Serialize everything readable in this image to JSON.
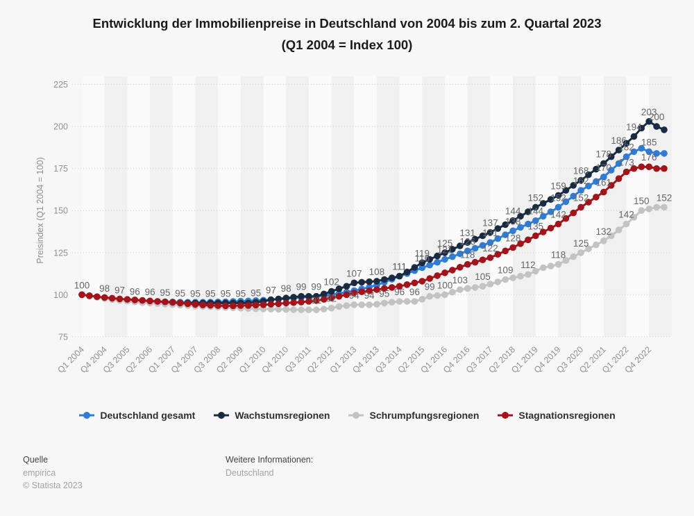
{
  "title": {
    "line1": "Entwicklung der Immobilienpreise in Deutschland von 2004 bis zum 2. Quartal 2023",
    "line2": "(Q1 2004 = Index 100)"
  },
  "chart_data": {
    "type": "line",
    "x_start": "Q1 2004",
    "x_end": "Q2 2023",
    "n_points": 78,
    "x_tick_labels": [
      "Q1 2004",
      "Q4 2004",
      "Q3 2005",
      "Q2 2006",
      "Q1 2007",
      "Q4 2007",
      "Q3 2008",
      "Q2 2009",
      "Q1 2010",
      "Q4 2010",
      "Q3 2011",
      "Q2 2012",
      "Q1 2013",
      "Q4 2013",
      "Q3 2014",
      "Q2 2015",
      "Q1 2016",
      "Q4 2016",
      "Q3 2017",
      "Q2 2018",
      "Q1 2019",
      "Q4 2019",
      "Q3 2020",
      "Q2 2021",
      "Q1 2022",
      "Q4 2022"
    ],
    "x_tick_step": 3,
    "ylabel": "Preisindex (Q1 2004 = 100)",
    "ylim": [
      75,
      225
    ],
    "yticks": [
      75,
      100,
      125,
      150,
      175,
      200,
      225
    ],
    "grid": "dotted-horizontal",
    "background_bands": "alternating-vertical",
    "legend_position": "bottom",
    "colors": {
      "band_dark": "#f0f0f1",
      "band_light": "#fafafa",
      "gridline": "#cfcfcf",
      "tick_text": "#909194",
      "data_label": "#646669",
      "page_bg": "#f7f7f7"
    },
    "series": [
      {
        "name": "Deutschland gesamt",
        "color": "#2f7cd6",
        "values": [
          100,
          99.3,
          98.7,
          98.2,
          97.7,
          97.3,
          97,
          96.7,
          96.4,
          96.2,
          96,
          95.8,
          95.7,
          95.6,
          95.5,
          95.5,
          95.5,
          95.6,
          95.7,
          95.8,
          96,
          96.1,
          96.3,
          96.5,
          96.7,
          97,
          97.3,
          97.6,
          98,
          98.3,
          98.7,
          99,
          99.5,
          100,
          100.7,
          101.5,
          102.4,
          103.4,
          104.5,
          105.7,
          107.4,
          109.2,
          111,
          112.6,
          114.3,
          116,
          117.6,
          119.3,
          121,
          122.6,
          124.3,
          126,
          127.6,
          129.3,
          131,
          133.3,
          135.6,
          138,
          140,
          142,
          144,
          146.6,
          149.3,
          152,
          155.3,
          158.6,
          162,
          164.6,
          167.3,
          170,
          174,
          178,
          182,
          185,
          187,
          185,
          184,
          184
        ],
        "point_labels": [
          [
            42,
            "111"
          ],
          [
            45,
            "116"
          ],
          [
            48,
            "121"
          ],
          [
            51,
            "126"
          ],
          [
            54,
            "131"
          ],
          [
            57,
            "138"
          ],
          [
            60,
            "144"
          ],
          [
            63,
            "152"
          ],
          [
            66,
            "162"
          ],
          [
            69,
            "170"
          ],
          [
            72,
            "182"
          ],
          [
            75,
            "185"
          ]
        ]
      },
      {
        "name": "Wachstumsregionen",
        "color": "#182b40",
        "values": [
          100,
          99.3,
          98.6,
          98,
          97.5,
          97,
          96.5,
          96.2,
          96,
          96,
          95.7,
          95.5,
          95.3,
          95.1,
          95,
          95,
          95,
          95,
          95,
          95,
          95,
          95,
          95,
          95.4,
          96,
          97,
          97.5,
          98,
          98.5,
          99,
          99,
          99,
          100.4,
          102,
          103.5,
          105,
          107,
          107.4,
          107.7,
          108,
          109,
          110,
          111,
          113.5,
          116.2,
          119,
          121,
          123,
          125,
          127,
          129,
          131,
          133,
          135,
          137,
          139.3,
          141.6,
          144,
          146.6,
          149.3,
          152,
          154.3,
          156.6,
          159,
          162,
          165,
          168,
          171.3,
          174.6,
          178,
          182,
          186,
          190,
          194,
          199,
          203,
          200,
          198
        ],
        "point_labels": [
          [
            0,
            "100"
          ],
          [
            3,
            "98"
          ],
          [
            5,
            "97"
          ],
          [
            7,
            "96"
          ],
          [
            9,
            "96"
          ],
          [
            11,
            "95"
          ],
          [
            13,
            "95"
          ],
          [
            15,
            "95"
          ],
          [
            17,
            "95"
          ],
          [
            19,
            "95"
          ],
          [
            21,
            "95"
          ],
          [
            23,
            "95"
          ],
          [
            25,
            "97"
          ],
          [
            27,
            "98"
          ],
          [
            29,
            "99"
          ],
          [
            31,
            "99"
          ],
          [
            33,
            "102"
          ],
          [
            36,
            "107"
          ],
          [
            39,
            "108"
          ],
          [
            42,
            "111"
          ],
          [
            45,
            "119"
          ],
          [
            48,
            "125"
          ],
          [
            51,
            "131"
          ],
          [
            54,
            "137"
          ],
          [
            57,
            "144"
          ],
          [
            60,
            "152"
          ],
          [
            63,
            "159"
          ],
          [
            66,
            "168"
          ],
          [
            69,
            "178"
          ],
          [
            71,
            "186"
          ],
          [
            73,
            "194"
          ],
          [
            75,
            "203"
          ],
          [
            76,
            "200"
          ]
        ]
      },
      {
        "name": "Schrumpfungsregionen",
        "color": "#c3c3c3",
        "values": [
          100,
          99.2,
          98.4,
          97.7,
          97.1,
          96.6,
          96.1,
          95.7,
          95.3,
          95,
          94.7,
          94.4,
          94.1,
          93.8,
          93.5,
          93.2,
          93,
          92.8,
          92.6,
          92.4,
          92.2,
          92,
          91.8,
          91.6,
          91.5,
          91.4,
          91.3,
          91.2,
          91.1,
          91,
          91,
          91,
          91.4,
          92,
          93,
          93.5,
          94,
          94,
          94,
          94.3,
          95,
          95.5,
          96,
          96,
          96,
          97.3,
          99,
          99.5,
          100,
          101.5,
          103,
          103.7,
          104.3,
          105,
          106.3,
          107.6,
          109,
          110,
          111,
          112,
          114,
          116,
          117,
          118,
          120.3,
          122.6,
          125,
          127.3,
          129.6,
          132,
          135,
          138.5,
          142,
          146,
          150,
          151,
          152,
          152
        ],
        "point_labels": [
          [
            31,
            "91"
          ],
          [
            33,
            "92"
          ],
          [
            36,
            "94"
          ],
          [
            38,
            "94"
          ],
          [
            40,
            "95"
          ],
          [
            42,
            "96"
          ],
          [
            44,
            "96"
          ],
          [
            46,
            "99"
          ],
          [
            48,
            "100"
          ],
          [
            50,
            "103"
          ],
          [
            53,
            "105"
          ],
          [
            56,
            "109"
          ],
          [
            59,
            "112"
          ],
          [
            63,
            "118"
          ],
          [
            66,
            "125"
          ],
          [
            69,
            "132"
          ],
          [
            72,
            "142"
          ],
          [
            74,
            "150"
          ],
          [
            77,
            "152"
          ]
        ]
      },
      {
        "name": "Stagnationsregionen",
        "color": "#a41319",
        "values": [
          100,
          99.4,
          98.8,
          98.3,
          97.9,
          97.5,
          97.2,
          96.9,
          96.6,
          96.3,
          96,
          95.7,
          95.4,
          95,
          94.6,
          94.2,
          93.9,
          93.7,
          93.5,
          93.4,
          93.4,
          93.5,
          93.6,
          93.8,
          94,
          94.3,
          94.6,
          95,
          95.3,
          95.6,
          96,
          96.5,
          97.2,
          98,
          99,
          100,
          101,
          101.7,
          102.3,
          103,
          103.7,
          104.3,
          105,
          106,
          107,
          108,
          109.6,
          111.3,
          113,
          114.6,
          116.3,
          118,
          119.3,
          120.7,
          122,
          124,
          126,
          128,
          130.3,
          132.6,
          135,
          137.3,
          139.6,
          142,
          145.3,
          148.6,
          152,
          155,
          158,
          161,
          165,
          169,
          173,
          175,
          176,
          176,
          175,
          175
        ],
        "point_labels": [
          [
            51,
            "118"
          ],
          [
            54,
            "122"
          ],
          [
            57,
            "128"
          ],
          [
            60,
            "135"
          ],
          [
            63,
            "142"
          ],
          [
            66,
            "152"
          ],
          [
            69,
            "161"
          ],
          [
            72,
            "173"
          ],
          [
            75,
            "176"
          ]
        ]
      }
    ]
  },
  "footer": {
    "source_label": "Quelle",
    "source": "empirica",
    "copyright": "© Statista 2023",
    "info_label": "Weitere Informationen:",
    "info": "Deutschland"
  }
}
